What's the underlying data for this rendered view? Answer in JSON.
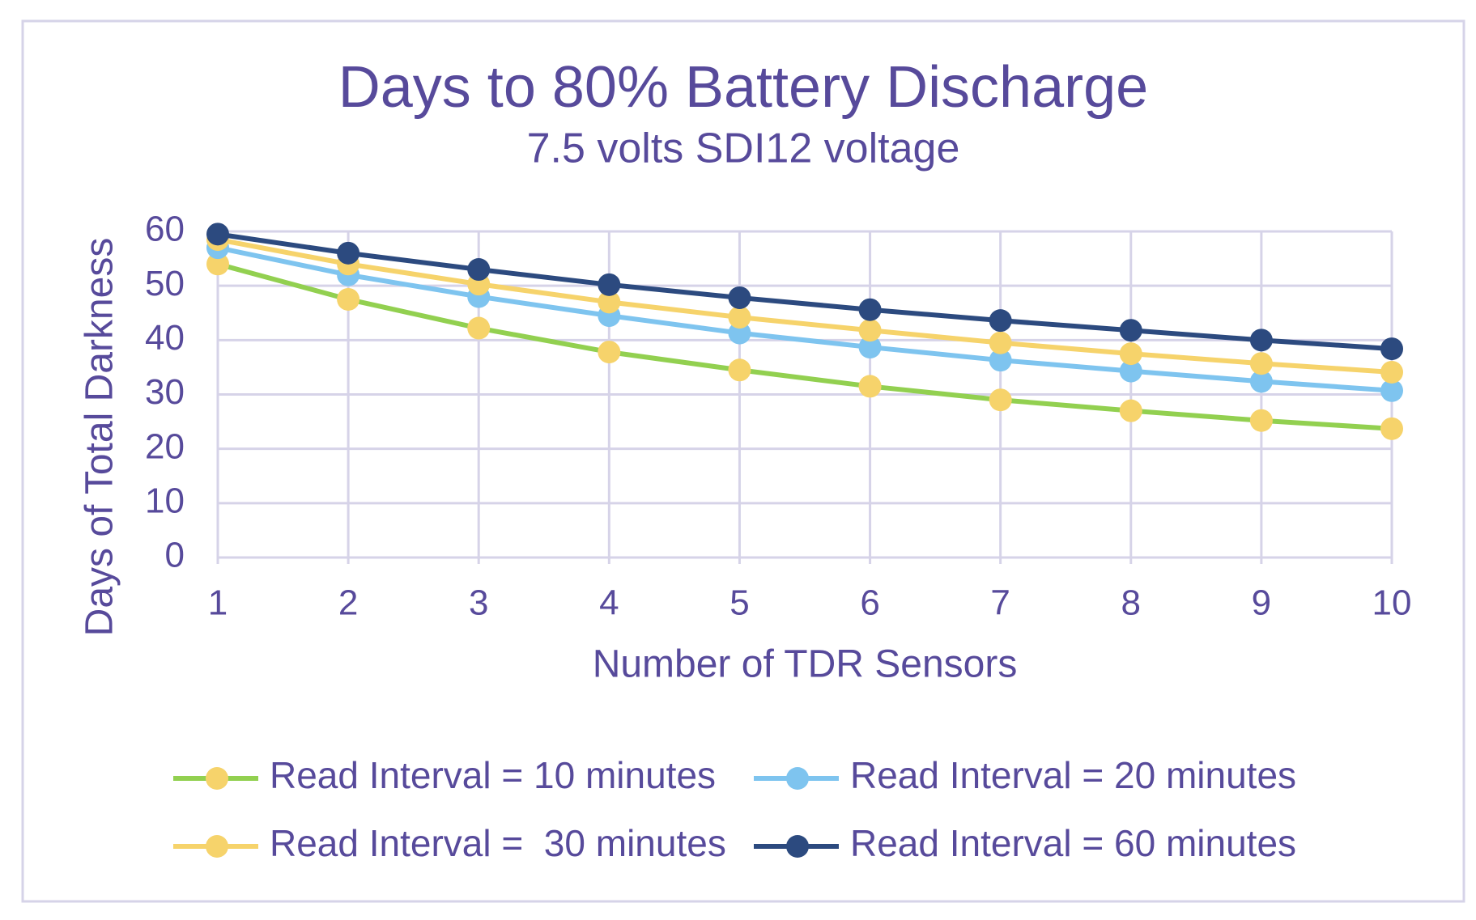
{
  "chart_data": {
    "type": "line",
    "title": "Days to 80% Battery Discharge",
    "subtitle": "7.5 volts SDI12 voltage",
    "x_label": "Number of TDR Sensors",
    "y_label": "Days of Total Darkness",
    "x": [
      1,
      2,
      3,
      4,
      5,
      6,
      7,
      8,
      9,
      10
    ],
    "xlim": [
      1,
      10
    ],
    "xticks": [
      1,
      2,
      3,
      4,
      5,
      6,
      7,
      8,
      9,
      10
    ],
    "ylim": [
      0,
      60
    ],
    "yticks": [
      0,
      10,
      20,
      30,
      40,
      50,
      60
    ],
    "grid": true,
    "legend": "bottom",
    "series": [
      {
        "name": "Read Interval = 10 minutes",
        "color": "#92d050",
        "marker_color": "#f6d36b",
        "values": [
          54,
          47.5,
          42.2,
          37.8,
          34.5,
          31.5,
          29,
          27,
          25.2,
          23.7
        ]
      },
      {
        "name": "Read Interval = 20 minutes",
        "color": "#7ec4ef",
        "marker_color": "#7ec4ef",
        "values": [
          57,
          52,
          48,
          44.5,
          41.3,
          38.7,
          36.3,
          34.3,
          32.4,
          30.7
        ]
      },
      {
        "name": "Read Interval =  30 minutes",
        "color": "#f6d36b",
        "marker_color": "#f6d36b",
        "values": [
          58.5,
          54,
          50.3,
          47,
          44.2,
          41.8,
          39.5,
          37.5,
          35.7,
          34.1
        ]
      },
      {
        "name": "Read Interval = 60 minutes",
        "color": "#2c4a7f",
        "marker_color": "#2c4a7f",
        "values": [
          59.5,
          56,
          53,
          50.2,
          47.8,
          45.6,
          43.6,
          41.8,
          40,
          38.4
        ]
      }
    ]
  }
}
